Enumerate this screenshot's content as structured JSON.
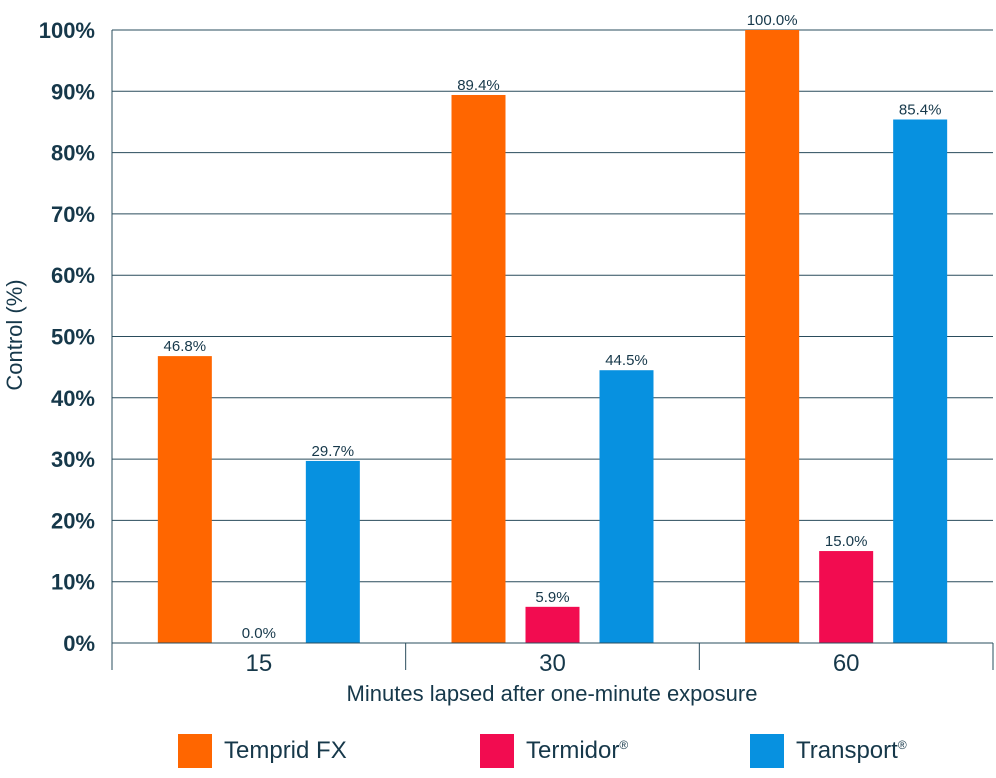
{
  "chart_data": {
    "type": "bar",
    "categories": [
      "15",
      "30",
      "60"
    ],
    "series": [
      {
        "name": "Temprid FX",
        "color": "#ff6600",
        "values": [
          46.8,
          89.4,
          100.0
        ],
        "labels": [
          "46.8%",
          "89.4%",
          "100.0%"
        ]
      },
      {
        "name": "Termidor",
        "name_mark": "®",
        "color": "#f20c50",
        "values": [
          0.0,
          5.9,
          15.0
        ],
        "labels": [
          "0.0%",
          "5.9%",
          "15.0%"
        ]
      },
      {
        "name": "Transport",
        "name_mark": "®",
        "color": "#0791e0",
        "values": [
          29.7,
          44.5,
          85.4
        ],
        "labels": [
          "29.7%",
          "44.5%",
          "85.4%"
        ]
      }
    ],
    "title": "",
    "xlabel": "Minutes lapsed after one-minute exposure",
    "ylabel": "Control (%)",
    "ylim": [
      0,
      100
    ],
    "yticks": [
      "0%",
      "10%",
      "20%",
      "30%",
      "40%",
      "50%",
      "60%",
      "70%",
      "80%",
      "90%",
      "100%"
    ],
    "grid": true,
    "legend": "bottom"
  }
}
